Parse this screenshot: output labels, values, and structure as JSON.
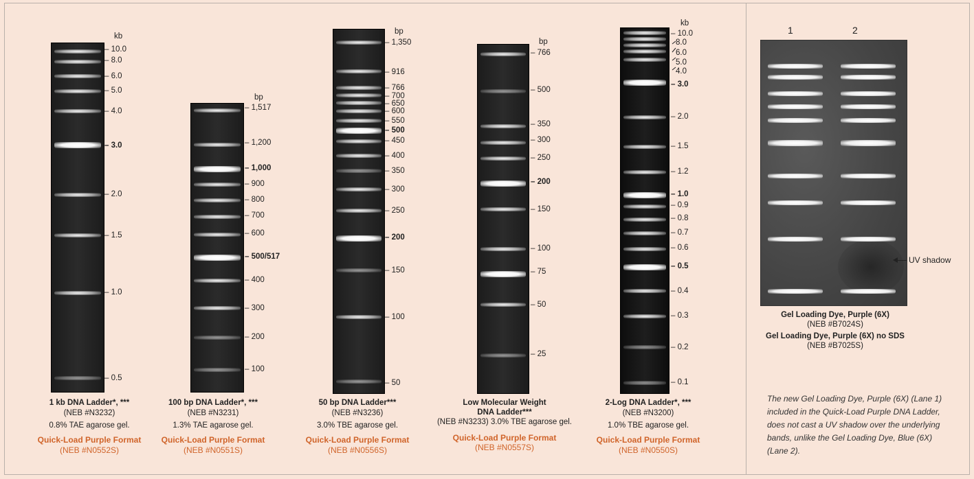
{
  "ladders": [
    {
      "unit": "kb",
      "labels": [
        "10.0",
        "8.0",
        "6.0",
        "5.0",
        "4.0",
        "3.0",
        "2.0",
        "1.5",
        "1.0",
        "0.5"
      ],
      "bold": [
        "3.0"
      ],
      "caption": {
        "name": "1 kb DNA Ladder",
        "stars": "*, ***",
        "cat": "(NEB #N3232)",
        "gel": "0.8% TAE agarose gel.",
        "ql": "Quick-Load Purple Format",
        "qlcat": "(NEB #N0552S)"
      }
    },
    {
      "unit": "bp",
      "labels": [
        "1,517",
        "1,200",
        "1,000",
        "900",
        "800",
        "700",
        "600",
        "500/517",
        "400",
        "300",
        "200",
        "100"
      ],
      "bold": [
        "1,000",
        "500/517"
      ],
      "caption": {
        "name": "100 bp DNA Ladder",
        "stars": "*, ***",
        "cat": "(NEB #N3231)",
        "gel": "1.3% TAE agarose gel.",
        "ql": "Quick-Load Purple Format",
        "qlcat": "(NEB #N0551S)"
      }
    },
    {
      "unit": "bp",
      "labels": [
        "1,350",
        "916",
        "766",
        "700",
        "650",
        "600",
        "550",
        "500",
        "450",
        "400",
        "350",
        "300",
        "250",
        "200",
        "150",
        "100",
        "50"
      ],
      "bold": [
        "500",
        "200"
      ],
      "caption": {
        "name": "50 bp DNA Ladder",
        "stars": "***",
        "cat": "(NEB #N3236)",
        "gel": "3.0% TBE agarose gel.",
        "ql": "Quick-Load Purple Format",
        "qlcat": "(NEB #N0556S)"
      }
    },
    {
      "unit": "bp",
      "labels": [
        "766",
        "500",
        "350",
        "300",
        "250",
        "200",
        "150",
        "100",
        "75",
        "50",
        "25"
      ],
      "bold": [
        "200"
      ],
      "caption": {
        "name": "Low Molecular Weight DNA Ladder",
        "stars": "***",
        "cat": "(NEB #N3233) 3.0% TBE agarose gel.",
        "gel": "",
        "ql": "Quick-Load Purple Format",
        "qlcat": "(NEB #N0557S)"
      }
    },
    {
      "unit": "kb",
      "labels": [
        "10.0",
        "8.0",
        "6.0",
        "5.0",
        "4.0",
        "3.0",
        "2.0",
        "1.5",
        "1.2",
        "1.0",
        "0.9",
        "0.8",
        "0.7",
        "0.6",
        "0.5",
        "0.4",
        "0.3",
        "0.2",
        "0.1"
      ],
      "bold": [
        "3.0",
        "1.0",
        "0.5"
      ],
      "caption": {
        "name": "2-Log DNA Ladder",
        "stars": "*, ***",
        "cat": "(NEB #N3200)",
        "gel": "1.0% TBE agarose gel.",
        "ql": "Quick-Load Purple Format",
        "qlcat": "(NEB #N0550S)"
      }
    }
  ],
  "right_panel": {
    "lanes": [
      "1",
      "2"
    ],
    "uv_label": "UV shadow",
    "cap1_name": "Gel Loading Dye, Purple (6X)",
    "cap1_cat": "(NEB #B7024S)",
    "cap2_name": "Gel Loading Dye, Purple (6X) no SDS",
    "cap2_cat": "(NEB #B7025S)",
    "note": "The new Gel Loading Dye, Purple (6X) (Lane 1) included in the Quick-Load Purple DNA Ladder, does not cast a UV shadow over the underlying bands, unlike the Gel Loading Dye, Blue (6X) (Lane 2)."
  }
}
